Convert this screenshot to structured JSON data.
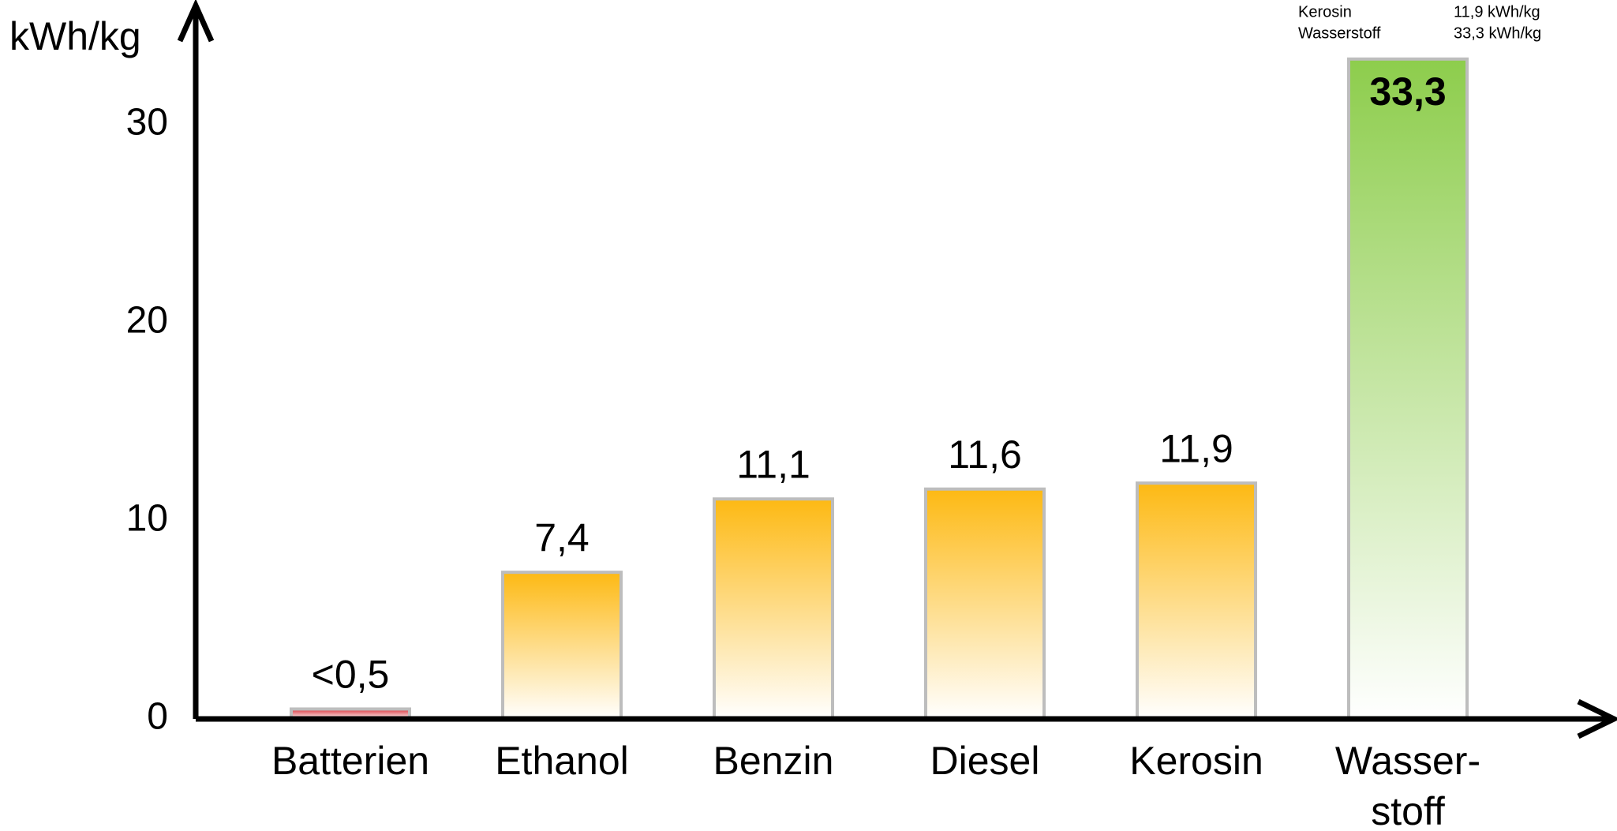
{
  "chart_data": {
    "type": "bar",
    "y_label": "kWh/kg",
    "categories": [
      "Batterien",
      "Ethanol",
      "Benzin",
      "Diesel",
      "Kerosin",
      "Wasser-\nstoff"
    ],
    "values": [
      0.5,
      7.4,
      11.1,
      11.6,
      11.9,
      33.3
    ],
    "value_labels": [
      "<0,5",
      "7,4",
      "11,1",
      "11,6",
      "11,9",
      "33,3"
    ],
    "colors": [
      "#d9323a",
      "#fdb913",
      "#fdb913",
      "#fdb913",
      "#fdb913",
      "#8dcd4c"
    ],
    "ylim": [
      0,
      36
    ],
    "yticks": [
      0,
      10,
      20,
      30
    ],
    "grid": false,
    "notes": [
      [
        "Kerosin",
        "11,9 kWh/kg"
      ],
      [
        "Wasserstoff",
        "33,3 kWh/kg"
      ]
    ]
  }
}
